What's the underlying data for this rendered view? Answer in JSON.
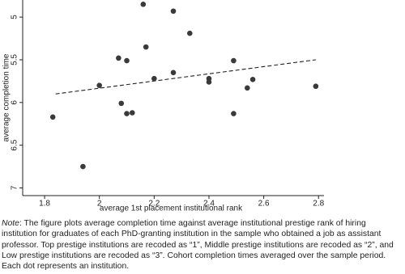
{
  "chart_data": {
    "type": "scatter",
    "x_label": "average 1st placement institutional rank",
    "y_label": "average completion time",
    "xlim": [
      1.72,
      2.82
    ],
    "xticks": [
      1.8,
      2,
      2.2,
      2.4,
      2.6,
      2.8
    ],
    "ylim": [
      4.8,
      7.09
    ],
    "yticks": [
      5,
      5.5,
      6,
      6.5,
      7
    ],
    "y_reversed": true,
    "color": "#3a3a3a",
    "x": [
      1.83,
      1.94,
      2.0,
      2.07,
      2.08,
      2.1,
      2.1,
      2.12,
      2.16,
      2.17,
      2.2,
      2.27,
      2.27,
      2.33,
      2.4,
      2.4,
      2.49,
      2.49,
      2.54,
      2.56,
      2.79
    ],
    "values": [
      6.17,
      6.75,
      5.8,
      5.48,
      6.01,
      5.51,
      6.13,
      6.12,
      4.85,
      5.35,
      5.72,
      4.93,
      5.65,
      5.19,
      5.72,
      5.76,
      5.51,
      6.13,
      5.83,
      5.73,
      5.81
    ],
    "trend_line": {
      "x": [
        1.84,
        2.79
      ],
      "y": [
        5.9,
        5.5
      ],
      "color": "#222"
    }
  },
  "note": {
    "label": "Note",
    "text": ": The figure plots average completion time against average institutional prestige rank of hiring institution for graduates of each PhD-granting institution in the sample who obtained a job as assistant professor. Top prestige institutions are recoded as “1”, Middle prestige institutions are recoded as “2”, and Low prestige institutions are recoded as “3”. Cohort completion times averaged over the sample period. Each dot represents an institution."
  }
}
